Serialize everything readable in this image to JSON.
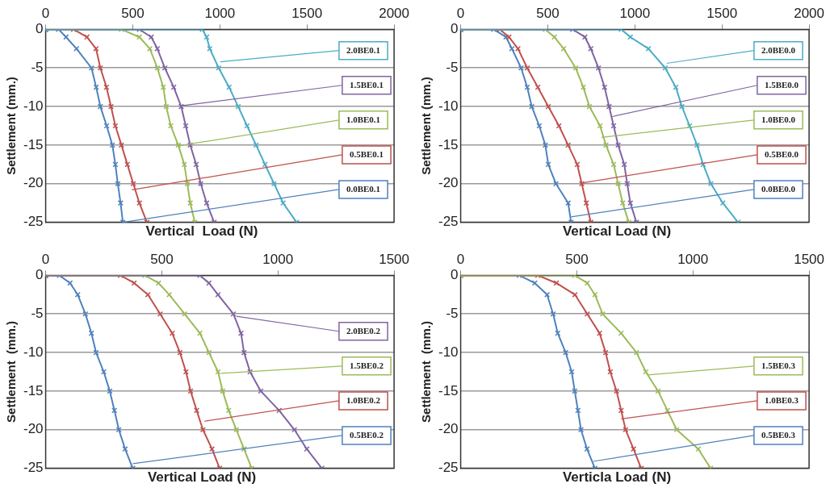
{
  "chart_data": [
    {
      "type": "line",
      "xlabel": "Vertical  Load (N)",
      "ylabel": "Settlement (mm.)",
      "xlim": [
        0,
        2000
      ],
      "xticks": [
        0,
        500,
        1000,
        1500,
        2000
      ],
      "ylim": [
        -25,
        0
      ],
      "yticks": [
        0,
        -5,
        -10,
        -15,
        -20,
        -25
      ],
      "grid": "y",
      "marker": "cross",
      "line_style": "solid",
      "legend": false,
      "series": [
        {
          "color": "#4bacc6",
          "x": [
            0,
            899,
            924,
            942,
            993,
            1053,
            1105,
            1156,
            1208,
            1259,
            1311,
            1363,
            1440
          ],
          "values": [
            0,
            0,
            -1,
            -2.5,
            -5,
            -7.5,
            -10,
            -12.5,
            -15,
            -17.5,
            -20,
            -22.5,
            -25
          ]
        },
        {
          "color": "#8064a2",
          "x": [
            0,
            538,
            606,
            641,
            684,
            735,
            778,
            804,
            830,
            864,
            890,
            924,
            967
          ],
          "values": [
            0,
            0,
            -1,
            -2.5,
            -5,
            -7.5,
            -10,
            -12.5,
            -15,
            -17.5,
            -20,
            -22.5,
            -25
          ]
        },
        {
          "color": "#9bbb59",
          "x": [
            0,
            435,
            538,
            598,
            641,
            675,
            692,
            718,
            761,
            796,
            813,
            830,
            856
          ],
          "values": [
            0,
            0,
            -1,
            -2.5,
            -5,
            -7.5,
            -10,
            -12.5,
            -15,
            -17.5,
            -20,
            -22.5,
            -25
          ]
        },
        {
          "color": "#c0504d",
          "x": [
            0,
            160,
            237,
            289,
            314,
            349,
            375,
            400,
            435,
            469,
            503,
            538,
            581
          ],
          "values": [
            0,
            0,
            -1,
            -2.5,
            -5,
            -7.5,
            -10,
            -12.5,
            -15,
            -17.5,
            -20,
            -22.5,
            -25
          ]
        },
        {
          "color": "#4f81bd",
          "x": [
            0,
            74,
            117,
            177,
            263,
            290,
            314,
            350,
            383,
            400,
            414,
            430,
            443
          ],
          "values": [
            0,
            0,
            -1,
            -2.5,
            -5,
            -7.5,
            -10,
            -12.5,
            -15,
            -17.5,
            -20,
            -22.5,
            -25
          ]
        }
      ],
      "annotations": [
        {
          "text": "2.0BE0.1",
          "x": 1002,
          "y": -4.2
        },
        {
          "text": "1.5BE0.1",
          "x": 778,
          "y": -9.9
        },
        {
          "text": "1.0BE0.1",
          "x": 761,
          "y": -15.1
        },
        {
          "text": "0.5BE0.1",
          "x": 495,
          "y": -20.8
        },
        {
          "text": "0.0BE0.1",
          "x": 443,
          "y": -25
        }
      ]
    },
    {
      "type": "line",
      "xlabel": "Vertical Load (N)",
      "ylabel": "Settlement (mm.)",
      "xlim": [
        0,
        2000
      ],
      "xticks": [
        0,
        500,
        1000,
        1500,
        2000
      ],
      "ylim": [
        -25,
        0
      ],
      "yticks": [
        0,
        -5,
        -10,
        -15,
        -20,
        -25
      ],
      "grid": "y",
      "marker": "cross",
      "line_style": "solid",
      "legend": false,
      "series": [
        {
          "color": "#4bacc6",
          "x": [
            0,
            922,
            974,
            1078,
            1174,
            1235,
            1270,
            1314,
            1357,
            1392,
            1436,
            1505,
            1592
          ],
          "values": [
            0,
            0,
            -1,
            -2.5,
            -5,
            -7.5,
            -10,
            -12.5,
            -15,
            -17.5,
            -20,
            -22.5,
            -25
          ]
        },
        {
          "color": "#8064a2",
          "x": [
            0,
            643,
            713,
            747,
            791,
            826,
            852,
            878,
            904,
            939,
            956,
            974,
            1009
          ],
          "values": [
            0,
            0,
            -1,
            -2.5,
            -5,
            -7.5,
            -10,
            -12.5,
            -15,
            -17.5,
            -20,
            -22.5,
            -25
          ]
        },
        {
          "color": "#9bbb59",
          "x": [
            0,
            486,
            538,
            591,
            660,
            704,
            739,
            800,
            834,
            878,
            904,
            930,
            965
          ],
          "values": [
            0,
            0,
            -1,
            -2.5,
            -5,
            -7.5,
            -10,
            -12.5,
            -15,
            -17.5,
            -20,
            -22.5,
            -25
          ]
        },
        {
          "color": "#c0504d",
          "x": [
            0,
            225,
            277,
            329,
            382,
            443,
            503,
            564,
            617,
            669,
            695,
            721,
            747
          ],
          "values": [
            0,
            0,
            -1,
            -2.5,
            -5,
            -7.5,
            -10,
            -12.5,
            -15,
            -17.5,
            -20,
            -22.5,
            -25
          ]
        },
        {
          "color": "#4f81bd",
          "x": [
            0,
            190,
            260,
            294,
            347,
            382,
            408,
            451,
            486,
            503,
            547,
            617,
            634
          ],
          "values": [
            0,
            0,
            -1,
            -2.5,
            -5,
            -7.5,
            -10,
            -12.5,
            -15,
            -17.5,
            -20,
            -22.5,
            -25
          ]
        }
      ],
      "annotations": [
        {
          "text": "2.0BE0.0",
          "x": 1183,
          "y": -4.4
        },
        {
          "text": "1.5BE0.0",
          "x": 870,
          "y": -11.3
        },
        {
          "text": "1.0BE0.0",
          "x": 808,
          "y": -14
        },
        {
          "text": "0.5BE0.0",
          "x": 695,
          "y": -19.9
        },
        {
          "text": "0.0BE0.0",
          "x": 634,
          "y": -24.3
        }
      ]
    },
    {
      "type": "line",
      "xlabel": "Vertical Load (N)",
      "ylabel": "Settlement  (mm.)",
      "xlim": [
        0,
        1500
      ],
      "xticks": [
        0,
        500,
        1000,
        1500
      ],
      "ylim": [
        -25,
        0
      ],
      "yticks": [
        0,
        -5,
        -10,
        -15,
        -20,
        -25
      ],
      "grid": "y",
      "marker": "cross",
      "line_style": "solid",
      "legend": false,
      "series": [
        {
          "color": "#8064a2",
          "x": [
            0,
            664,
            703,
            742,
            808,
            841,
            854,
            880,
            926,
            1005,
            1071,
            1124,
            1189
          ],
          "values": [
            0,
            0,
            -1,
            -2.5,
            -5,
            -7.5,
            -10,
            -12.5,
            -15,
            -17.5,
            -20,
            -22.5,
            -25
          ]
        },
        {
          "color": "#9bbb59",
          "x": [
            0,
            427,
            486,
            532,
            598,
            664,
            703,
            742,
            762,
            788,
            821,
            854,
            887
          ],
          "values": [
            0,
            0,
            -1,
            -2.5,
            -5,
            -7.5,
            -10,
            -12.5,
            -15,
            -17.5,
            -20,
            -22.5,
            -25
          ]
        },
        {
          "color": "#c0504d",
          "x": [
            0,
            322,
            381,
            440,
            493,
            545,
            578,
            604,
            624,
            650,
            677,
            716,
            749
          ],
          "values": [
            0,
            0,
            -1,
            -2.5,
            -5,
            -7.5,
            -10,
            -12.5,
            -15,
            -17.5,
            -20,
            -22.5,
            -25
          ]
        },
        {
          "color": "#4f81bd",
          "x": [
            0,
            59,
            105,
            138,
            171,
            197,
            217,
            250,
            276,
            296,
            315,
            342,
            375
          ],
          "values": [
            0,
            0,
            -1,
            -2.5,
            -5,
            -7.5,
            -10,
            -12.5,
            -15,
            -17.5,
            -20,
            -22.5,
            -25
          ]
        }
      ],
      "annotations": [
        {
          "text": "2.0BE0.2",
          "x": 821,
          "y": -5.3
        },
        {
          "text": "1.5BE0.2",
          "x": 755,
          "y": -12.7
        },
        {
          "text": "1.0BE0.2",
          "x": 683,
          "y": -18.9
        },
        {
          "text": "0.5BE0.2",
          "x": 375,
          "y": -24.4
        }
      ]
    },
    {
      "type": "line",
      "xlabel": "Verticla Load (N)",
      "ylabel": "Settlement  (mm.)",
      "xlim": [
        0,
        1500
      ],
      "xticks": [
        0,
        500,
        1000,
        1500
      ],
      "ylim": [
        -25,
        0
      ],
      "yticks": [
        0,
        -5,
        -10,
        -15,
        -20,
        -25
      ],
      "grid": "y",
      "marker": "cross",
      "line_style": "solid",
      "legend": false,
      "series": [
        {
          "color": "#9bbb59",
          "x": [
            0,
            491,
            545,
            578,
            611,
            691,
            757,
            797,
            850,
            890,
            930,
            1023,
            1076
          ],
          "values": [
            0,
            0,
            -1,
            -2.5,
            -5,
            -7.5,
            -10,
            -12.5,
            -15,
            -17.5,
            -20,
            -22.5,
            -25
          ]
        },
        {
          "color": "#c0504d",
          "x": [
            0,
            332,
            412,
            492,
            545,
            598,
            624,
            644,
            671,
            691,
            710,
            744,
            777
          ],
          "values": [
            0,
            0,
            -1,
            -2.5,
            -5,
            -7.5,
            -10,
            -12.5,
            -15,
            -17.5,
            -20,
            -22.5,
            -25
          ]
        },
        {
          "color": "#4f81bd",
          "x": [
            0,
            252,
            319,
            372,
            398,
            418,
            452,
            478,
            491,
            505,
            518,
            544,
            578
          ],
          "values": [
            0,
            0,
            -1,
            -2.5,
            -5,
            -7.5,
            -10,
            -12.5,
            -15,
            -17.5,
            -20,
            -22.5,
            -25
          ]
        }
      ],
      "annotations": [
        {
          "text": "1.5BE0.3",
          "x": 805,
          "y": -12.9
        },
        {
          "text": "1.0BE0.3",
          "x": 691,
          "y": -18.6
        },
        {
          "text": "0.5BE0.3",
          "x": 571,
          "y": -24.1
        }
      ]
    }
  ]
}
